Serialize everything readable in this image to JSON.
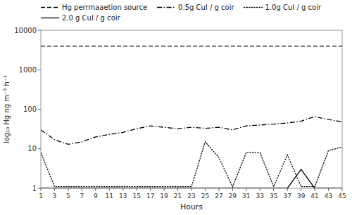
{
  "chart_data": {
    "type": "line",
    "xlabel": "Hours",
    "ylabel": "log₁₀ Hg ng m⁻³ h⁻¹",
    "x": [
      1,
      3,
      5,
      7,
      9,
      11,
      13,
      15,
      17,
      19,
      21,
      23,
      25,
      27,
      29,
      31,
      33,
      35,
      37,
      39,
      41,
      43,
      45
    ],
    "series": [
      {
        "name": "Hg perrmaaetion source",
        "color": "#000000",
        "line_style": "dashed",
        "x": [
          1,
          45
        ],
        "values": [
          3973,
          3973
        ]
      },
      {
        "name": "0.5g CuI / g coir",
        "color": "#000000",
        "line_style": "dashdot",
        "values": [
          30,
          17,
          13,
          15,
          20,
          23,
          26,
          32,
          38,
          35,
          32,
          35,
          33,
          35,
          30,
          38,
          40,
          42,
          45,
          50,
          65,
          55,
          48
        ]
      },
      {
        "name": "1.0g CuI / g coir",
        "color": "#000000",
        "line_style": "dotted",
        "values": [
          8,
          1.1,
          1.1,
          1.1,
          1.1,
          1.1,
          1.1,
          1.1,
          1.1,
          1.1,
          1.1,
          1.1,
          15,
          6,
          1.1,
          8,
          8,
          1.1,
          7,
          1.1,
          1.1,
          9,
          11
        ]
      },
      {
        "name": "2.0 g CuI / g coir",
        "color": "#000000",
        "line_style": "solid",
        "values": [
          1.0,
          1.0,
          1.0,
          1.0,
          1.0,
          1.0,
          1.0,
          1.0,
          1.0,
          1.0,
          1.0,
          1.0,
          1.0,
          1.0,
          1.0,
          1.0,
          1.0,
          1.0,
          1.0,
          3.0,
          1.0,
          1.0,
          1.0
        ]
      }
    ],
    "log": "y",
    "xlim": [
      1,
      45
    ],
    "xticks": [
      1,
      3,
      5,
      7,
      9,
      11,
      13,
      15,
      17,
      19,
      21,
      23,
      25,
      27,
      29,
      31,
      33,
      35,
      37,
      39,
      41,
      43,
      45
    ],
    "ylim": [
      1,
      10000
    ],
    "yticks": [
      1,
      10,
      100,
      1000,
      10000
    ],
    "grid": false,
    "legend": "top"
  }
}
